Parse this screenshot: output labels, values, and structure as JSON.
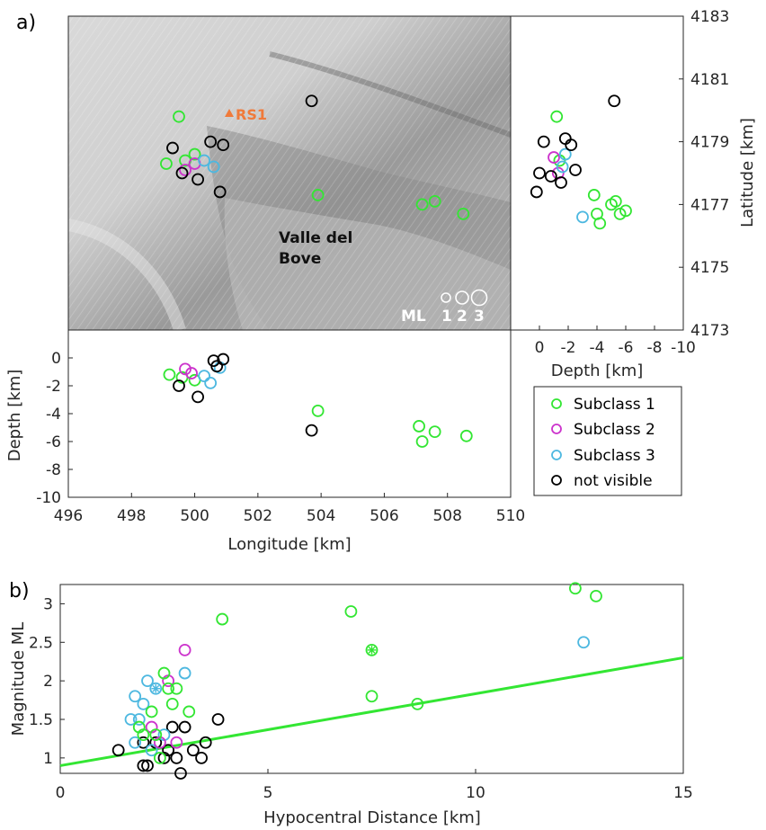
{
  "panel_labels": [
    "a)",
    "b)"
  ],
  "map": {
    "station_label": "RS1",
    "place_label_line1": "Valle del",
    "place_label_line2": "Bove",
    "scale_title": "ML",
    "scale_labels": [
      "1",
      "2",
      "3"
    ]
  },
  "colors": {
    "subclass1": "#33e633",
    "subclass2": "#cc33cc",
    "subclass3": "#4db8e0",
    "not_visible": "#000000",
    "station": "#f07a3a"
  },
  "legend": {
    "entries": [
      "Subclass 1",
      "Subclass 2",
      "Subclass 3",
      "not visible"
    ]
  },
  "chart_data": [
    {
      "type": "scatter",
      "name_hint": "map-view",
      "xlim": [
        496,
        510
      ],
      "ylim": [
        4173,
        4183
      ],
      "yticks": [
        4173,
        4175,
        4177,
        4179,
        4181,
        4183
      ],
      "ylabel": "Latitude [km]",
      "points": {
        "subclass1": [
          [
            499.5,
            4179.8
          ],
          [
            499.1,
            4178.3
          ],
          [
            500.0,
            4178.6
          ],
          [
            503.9,
            4177.3
          ],
          [
            507.2,
            4177.0
          ],
          [
            507.6,
            4177.1
          ],
          [
            508.5,
            4176.7
          ],
          [
            499.7,
            4178.4
          ]
        ],
        "subclass2": [
          [
            499.7,
            4178.1
          ],
          [
            500.0,
            4178.3
          ]
        ],
        "subclass3": [
          [
            500.3,
            4178.4
          ],
          [
            500.6,
            4178.2
          ]
        ],
        "not_visible": [
          [
            503.7,
            4180.3
          ],
          [
            499.3,
            4178.8
          ],
          [
            500.5,
            4179.0
          ],
          [
            500.9,
            4178.9
          ],
          [
            499.6,
            4178.0
          ],
          [
            500.8,
            4177.4
          ],
          [
            500.1,
            4177.8
          ]
        ]
      }
    },
    {
      "type": "scatter",
      "name_hint": "depth-latitude",
      "xlabel": "Depth [km]",
      "xlim": [
        2,
        -10
      ],
      "xticks": [
        0,
        -2,
        -4,
        -6,
        -8,
        -10
      ],
      "ylim": [
        4173,
        4183
      ],
      "points": {
        "subclass1": [
          [
            -1.2,
            4179.8
          ],
          [
            -1.4,
            4178.4
          ],
          [
            -3.8,
            4177.3
          ],
          [
            -5.0,
            4177.0
          ],
          [
            -5.3,
            4177.1
          ],
          [
            -5.6,
            4176.7
          ],
          [
            -6.0,
            4176.8
          ],
          [
            -4.2,
            4176.4
          ],
          [
            -4.0,
            4176.7
          ]
        ],
        "subclass2": [
          [
            -1.0,
            4178.5
          ],
          [
            -1.3,
            4178.0
          ]
        ],
        "subclass3": [
          [
            -1.8,
            4178.6
          ],
          [
            -1.6,
            4178.2
          ],
          [
            -3.0,
            4176.6
          ]
        ],
        "not_visible": [
          [
            -5.2,
            4180.3
          ],
          [
            -0.3,
            4179.0
          ],
          [
            -1.8,
            4179.1
          ],
          [
            -2.2,
            4178.9
          ],
          [
            0.2,
            4177.4
          ],
          [
            -0.8,
            4177.9
          ],
          [
            -1.5,
            4177.7
          ],
          [
            -2.5,
            4178.1
          ],
          [
            0.0,
            4178.0
          ]
        ]
      }
    },
    {
      "type": "scatter",
      "name_hint": "longitude-depth",
      "xlabel": "Longitude [km]",
      "ylabel": "Depth [km]",
      "xlim": [
        496,
        510
      ],
      "xticks": [
        496,
        498,
        500,
        502,
        504,
        506,
        508,
        510
      ],
      "ylim": [
        -10,
        2
      ],
      "yticks": [
        0,
        -2,
        -4,
        -6,
        -8,
        -10
      ],
      "points": {
        "subclass1": [
          [
            499.2,
            -1.2
          ],
          [
            499.6,
            -1.4
          ],
          [
            500.0,
            -1.6
          ],
          [
            503.9,
            -3.8
          ],
          [
            507.1,
            -4.9
          ],
          [
            507.2,
            -6.0
          ],
          [
            507.6,
            -5.3
          ],
          [
            508.6,
            -5.6
          ]
        ],
        "subclass2": [
          [
            499.7,
            -0.8
          ],
          [
            499.9,
            -1.1
          ]
        ],
        "subclass3": [
          [
            500.3,
            -1.3
          ],
          [
            500.5,
            -1.8
          ],
          [
            500.8,
            -0.7
          ]
        ],
        "not_visible": [
          [
            503.7,
            -5.2
          ],
          [
            499.5,
            -2.0
          ],
          [
            500.1,
            -2.8
          ],
          [
            500.6,
            -0.2
          ],
          [
            500.9,
            -0.1
          ],
          [
            500.7,
            -0.6
          ]
        ]
      }
    },
    {
      "type": "scatter",
      "name_hint": "magnitude-distance",
      "xlabel": "Hypocentral Distance [km]",
      "ylabel": "Magnitude ML",
      "xlim": [
        0,
        15
      ],
      "xticks": [
        0,
        5,
        10,
        15
      ],
      "ylim": [
        0.8,
        3.25
      ],
      "yticks": [
        1,
        1.5,
        2,
        2.5,
        3
      ],
      "fit_line": [
        [
          0,
          0.9
        ],
        [
          15,
          2.3
        ]
      ],
      "points": {
        "subclass1": [
          [
            2.3,
            1.3
          ],
          [
            2.5,
            2.1
          ],
          [
            2.6,
            1.9
          ],
          [
            2.7,
            1.7
          ],
          [
            2.8,
            1.9
          ],
          [
            3.1,
            1.6
          ],
          [
            3.9,
            2.8
          ],
          [
            7.0,
            2.9
          ],
          [
            7.5,
            1.8
          ],
          [
            8.6,
            1.7
          ],
          [
            12.4,
            3.2
          ],
          [
            12.9,
            3.1
          ],
          [
            2.2,
            1.6
          ],
          [
            2.4,
            1.0
          ],
          [
            1.9,
            1.4
          ],
          [
            2.0,
            1.3
          ]
        ],
        "subclass1_star": [
          [
            7.5,
            2.4
          ]
        ],
        "subclass2": [
          [
            3.0,
            2.4
          ],
          [
            2.6,
            2.0
          ],
          [
            2.2,
            1.4
          ],
          [
            2.8,
            1.2
          ],
          [
            2.4,
            1.2
          ]
        ],
        "subclass3": [
          [
            12.6,
            2.5
          ],
          [
            2.1,
            2.0
          ],
          [
            3.0,
            2.1
          ],
          [
            1.8,
            1.8
          ],
          [
            1.7,
            1.5
          ],
          [
            1.9,
            1.5
          ],
          [
            2.0,
            1.7
          ],
          [
            1.8,
            1.2
          ],
          [
            2.2,
            1.1
          ],
          [
            2.5,
            1.3
          ]
        ],
        "subclass3_star": [
          [
            2.3,
            1.9
          ]
        ],
        "not_visible": [
          [
            1.4,
            1.1
          ],
          [
            2.0,
            0.9
          ],
          [
            2.1,
            0.9
          ],
          [
            2.3,
            1.2
          ],
          [
            2.5,
            1.0
          ],
          [
            2.7,
            1.4
          ],
          [
            3.0,
            1.4
          ],
          [
            3.4,
            1.0
          ],
          [
            3.5,
            1.2
          ],
          [
            3.8,
            1.5
          ],
          [
            2.9,
            0.8
          ],
          [
            3.2,
            1.1
          ],
          [
            2.0,
            1.2
          ],
          [
            2.8,
            1.0
          ],
          [
            2.6,
            1.1
          ]
        ]
      }
    }
  ]
}
